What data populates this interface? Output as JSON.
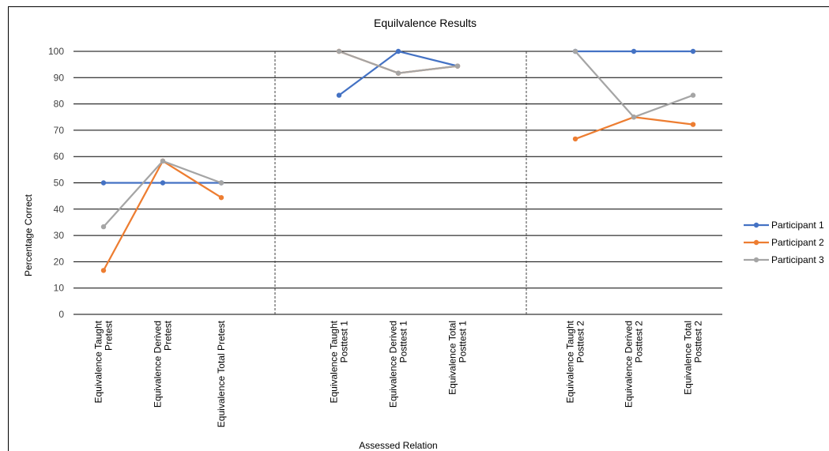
{
  "chart_data": {
    "type": "line",
    "title": "Equilvalence Results",
    "xlabel": "Assessed Relation",
    "ylabel": "Percentage Correct",
    "ylim": [
      0,
      100
    ],
    "yticks": [
      0,
      10,
      20,
      30,
      40,
      50,
      60,
      70,
      80,
      90,
      100
    ],
    "grid": true,
    "legend_position": "right",
    "phases": [
      {
        "categories": [
          [
            "Equivalence Taught",
            "Pretest"
          ],
          [
            "Equivalence Derived",
            "Pretest"
          ],
          [
            "Equivalence Total Pretest"
          ]
        ]
      },
      {
        "categories": [
          [
            "Equivalence Taught",
            "Posttest 1"
          ],
          [
            "Equivalence Derived",
            "Posttest 1"
          ],
          [
            "Equivalence Total",
            "Posttest 1"
          ]
        ]
      },
      {
        "categories": [
          [
            "Equivalence Taught",
            "Posttest 2"
          ],
          [
            "Equivalence Derived",
            "Posttest 2"
          ],
          [
            "Equivalence Total",
            "Posttest 2"
          ]
        ]
      }
    ],
    "series": [
      {
        "name": "Participant 1",
        "color": "#4472C4",
        "values": [
          [
            50,
            50,
            50
          ],
          [
            83.3,
            100,
            94.4
          ],
          [
            100,
            100,
            100
          ]
        ]
      },
      {
        "name": "Participant 2",
        "color": "#ED7D31",
        "values": [
          [
            16.7,
            58.3,
            44.4
          ],
          [
            100,
            91.7,
            94.4
          ],
          [
            66.7,
            75,
            72.2
          ]
        ]
      },
      {
        "name": "Participant 3",
        "color": "#A5A5A5",
        "values": [
          [
            33.3,
            58.3,
            50
          ],
          [
            100,
            91.7,
            94.4
          ],
          [
            100,
            75,
            83.3
          ]
        ]
      }
    ]
  }
}
